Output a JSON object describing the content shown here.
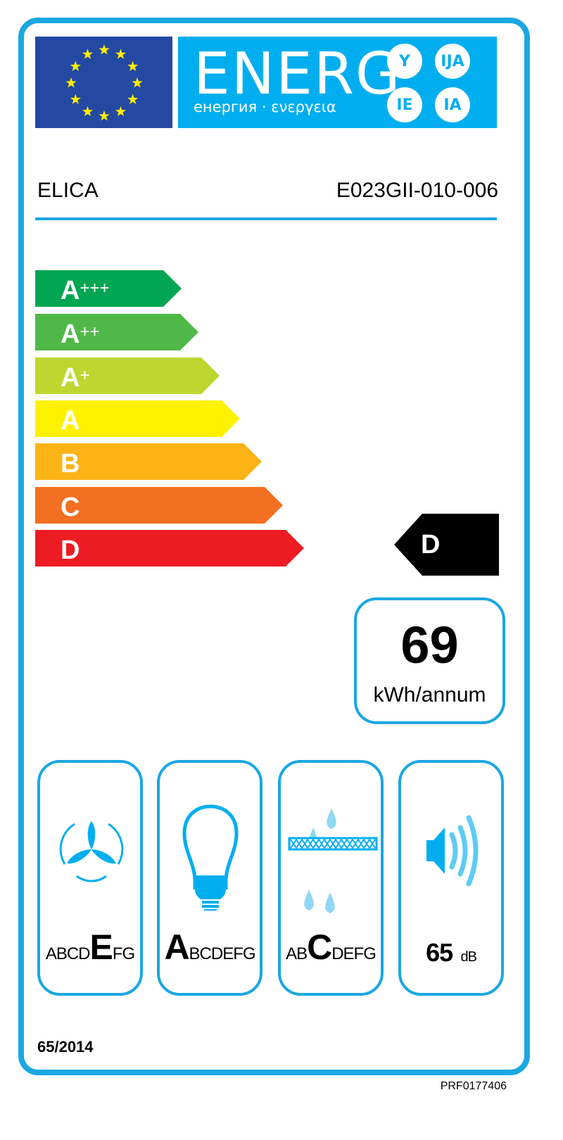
{
  "header": {
    "title": "ENERG",
    "subtitle": "енергия · ενεργεια",
    "suffixes": [
      "Y",
      "IJA",
      "IE",
      "IA"
    ]
  },
  "supplier": "ELICA",
  "model": "E023GII-010-006",
  "scale": [
    {
      "label": "A",
      "plus": "+++",
      "color": "#00a651"
    },
    {
      "label": "A",
      "plus": "++",
      "color": "#50b848"
    },
    {
      "label": "A",
      "plus": "+",
      "color": "#bed630"
    },
    {
      "label": "A",
      "plus": "",
      "color": "#fff200"
    },
    {
      "label": "B",
      "plus": "",
      "color": "#fbb316"
    },
    {
      "label": "C",
      "plus": "",
      "color": "#f36f21"
    },
    {
      "label": "D",
      "plus": "",
      "color": "#ed1c24"
    }
  ],
  "rating": "D",
  "consumption": {
    "value": "69",
    "unit": "kWh/annum"
  },
  "boxes": {
    "fan": {
      "before": "ABCD",
      "class": "E",
      "after": "FG"
    },
    "light": {
      "before": "",
      "class": "A",
      "after": "BCDEFG"
    },
    "filter": {
      "before": "AB",
      "class": "C",
      "after": "DEFG"
    },
    "noise": {
      "value": "65",
      "unit": "dB"
    }
  },
  "regulation": "65/2014",
  "code": "PRF0177406",
  "colors": {
    "frame": "#1aa7e2",
    "energy": "#00aeef",
    "flag": "#2349a2",
    "stars": "#ffed00"
  }
}
